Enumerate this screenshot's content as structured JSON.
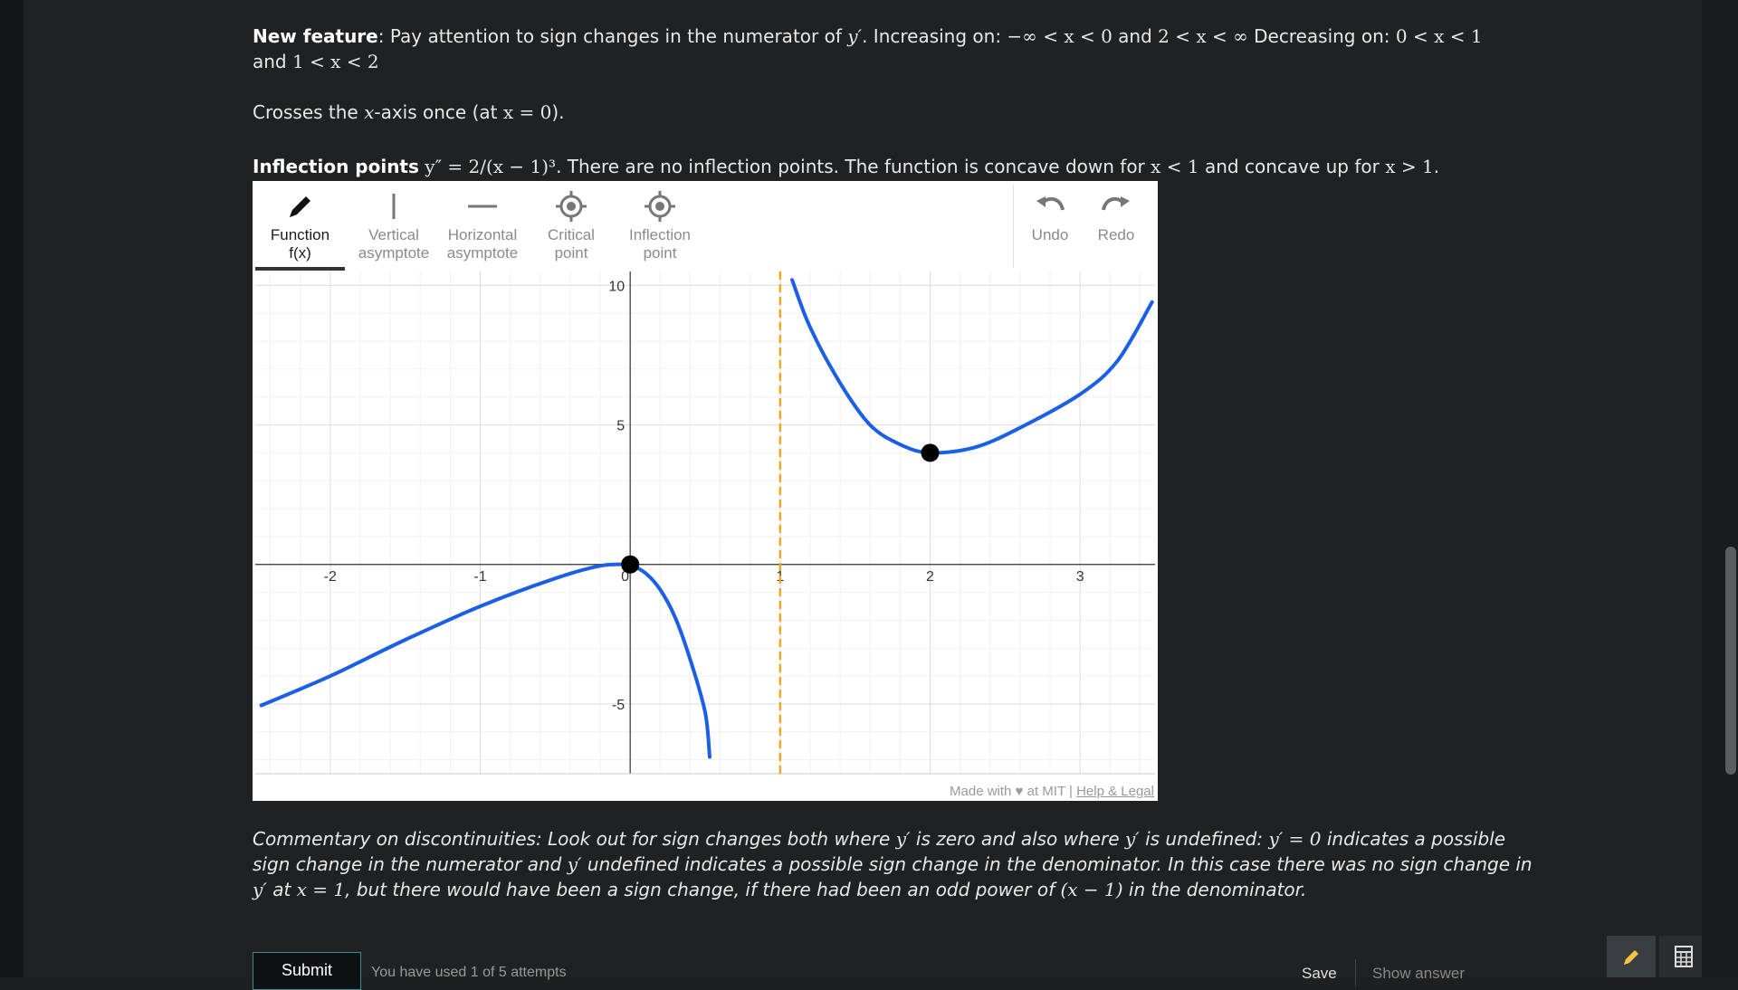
{
  "text": {
    "p1_bold": "New feature",
    "p1_a": ": Pay attention to sign changes in the numerator of ",
    "p1_y": "y′",
    "p1_b": ". Increasing on: ",
    "p1_m1": "−∞ < x < 0",
    "p1_c": " and ",
    "p1_m2": "2 < x < ∞",
    "p1_d": " Decreasing on: ",
    "p1_m3": "0 < x < 1",
    "p2_a": "and ",
    "p2_m": "1 < x < 2",
    "p3_a": "Crosses the ",
    "p3_x": "x",
    "p3_b": "-axis once (at ",
    "p3_m": "x = 0",
    "p3_c": ").",
    "p4_bold": "Inflection points",
    "p4_m": "y″ = 2/(x − 1)³",
    "p4_a": ". There are no inflection points. The function is concave down for ",
    "p4_m2": "x < 1",
    "p4_b": " and concave up for ",
    "p4_m3": "x > 1",
    "p4_c": ".",
    "c1_a": "Commentary on discontinuities: Look out for sign changes both where ",
    "c1_y1": "y′",
    "c1_b": " is zero and also where ",
    "c1_y2": "y′",
    "c1_c": " is undefined: ",
    "c1_m": "y′ = 0",
    "c1_d": " indicates a possible",
    "c2_a": "sign change in the numerator and ",
    "c2_y": "y′",
    "c2_b": " undefined indicates a possible sign change in the denominator. In this case there was no sign change in",
    "c3_y": "y′",
    "c3_a": " at ",
    "c3_m": "x = 1",
    "c3_b": ", but there would have been a sign change, if there had been an odd power of ",
    "c3_m2": "(x − 1)",
    "c3_c": " in the denominator."
  },
  "toolbar": {
    "function_l1": "Function",
    "function_l2": "f(x)",
    "vasym_l1": "Vertical",
    "vasym_l2": "asymptote",
    "hasym_l1": "Horizontal",
    "hasym_l2": "asymptote",
    "crit_l1": "Critical",
    "crit_l2": "point",
    "infl_l1": "Inflection",
    "infl_l2": "point",
    "undo": "Undo",
    "redo": "Redo"
  },
  "credit": {
    "made": "Made with ♥ at MIT | ",
    "help": "Help & Legal"
  },
  "footer": {
    "submit": "Submit",
    "attempts": "You have used 1 of 5 attempts",
    "save": "Save",
    "show_answer": "Show answer"
  },
  "colors": {
    "curve": "#1a5fe6",
    "asymptote": "#f5a623",
    "point": "#000000",
    "accent": "#3d8b94"
  },
  "chart_data": {
    "type": "line",
    "xlim": [
      -2.5,
      3.5
    ],
    "ylim": [
      -7.5,
      10.5
    ],
    "x_ticks": [
      -2,
      -1,
      0,
      1,
      2,
      3
    ],
    "x_tick_labels": [
      "-2",
      "-1",
      "0",
      "1",
      "2",
      "3"
    ],
    "y_ticks": [
      -5,
      5,
      10
    ],
    "y_tick_labels": [
      "-5",
      "5",
      "10"
    ],
    "grid": true,
    "series": [
      {
        "points": [
          [
            -2.46,
            -5.05
          ],
          [
            -2.0,
            -4.0
          ],
          [
            -1.5,
            -2.7
          ],
          [
            -1.0,
            -1.5
          ],
          [
            -0.5,
            -0.5
          ],
          [
            -0.2,
            -0.05
          ],
          [
            0,
            0
          ]
        ]
      },
      {
        "points": [
          [
            0,
            0
          ],
          [
            0.1,
            -0.3
          ],
          [
            0.2,
            -0.9
          ],
          [
            0.3,
            -1.9
          ],
          [
            0.4,
            -3.4
          ],
          [
            0.5,
            -5.3
          ],
          [
            0.53,
            -6.9
          ]
        ]
      },
      {
        "points": [
          [
            1.08,
            10.2
          ],
          [
            1.2,
            8.5
          ],
          [
            1.4,
            6.5
          ],
          [
            1.6,
            5.0
          ],
          [
            1.8,
            4.3
          ],
          [
            2.0,
            4.0
          ],
          [
            2.3,
            4.2
          ],
          [
            2.6,
            4.9
          ],
          [
            3.0,
            6.1
          ],
          [
            3.25,
            7.3
          ],
          [
            3.48,
            9.4
          ]
        ]
      }
    ],
    "vertical_asymptotes": [
      1
    ],
    "points": [
      {
        "x": 0,
        "y": 0
      },
      {
        "x": 2,
        "y": 4
      }
    ]
  }
}
